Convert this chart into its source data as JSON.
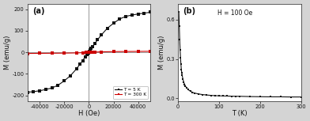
{
  "panel_a": {
    "label": "(a)",
    "xlabel": "H (Oe)",
    "ylabel": "M (emu/g)",
    "xlim": [
      -50000,
      50000
    ],
    "ylim": [
      -225,
      225
    ],
    "xticks": [
      -40000,
      -20000,
      0,
      20000,
      40000
    ],
    "yticks": [
      -200,
      -100,
      0,
      100,
      200
    ],
    "series_5K": {
      "label": "T = 5 K",
      "color": "#111111",
      "H": [
        -50000,
        -45000,
        -40000,
        -35000,
        -30000,
        -25000,
        -20000,
        -15000,
        -10000,
        -7000,
        -5000,
        -3000,
        -1500,
        -800,
        -300,
        0,
        300,
        800,
        1500,
        3000,
        5000,
        7000,
        10000,
        15000,
        20000,
        25000,
        30000,
        35000,
        40000,
        45000,
        50000
      ],
      "M": [
        -185,
        -182,
        -178,
        -172,
        -165,
        -152,
        -132,
        -108,
        -76,
        -53,
        -38,
        -20,
        -10,
        -5,
        -2,
        2,
        5,
        10,
        18,
        25,
        42,
        58,
        80,
        112,
        135,
        155,
        167,
        173,
        178,
        182,
        186
      ]
    },
    "series_300K": {
      "label": "T = 300 K",
      "color": "#cc0000",
      "H": [
        -50000,
        -40000,
        -30000,
        -20000,
        -10000,
        -5000,
        -2000,
        -1000,
        0,
        1000,
        2000,
        5000,
        10000,
        20000,
        30000,
        40000,
        50000
      ],
      "M": [
        -5,
        -4.5,
        -4,
        -3.5,
        -2.5,
        -1.5,
        -0.8,
        -0.4,
        0,
        0.4,
        0.8,
        1.5,
        2.5,
        3.5,
        4,
        4.5,
        5
      ]
    }
  },
  "panel_b": {
    "label": "(b)",
    "annotation": "H = 100 Oe",
    "xlabel": "T (K)",
    "ylabel": "M (emu/g)",
    "xlim": [
      0,
      300
    ],
    "ylim": [
      -0.02,
      0.72
    ],
    "xticks": [
      0,
      100,
      200,
      300
    ],
    "yticks": [
      0.0,
      0.3,
      0.6
    ],
    "color": "#111111",
    "T": [
      2,
      3,
      4,
      5,
      6,
      7,
      8,
      9,
      10,
      12,
      14,
      16,
      18,
      20,
      25,
      30,
      35,
      40,
      50,
      60,
      70,
      80,
      90,
      100,
      110,
      120,
      130,
      140,
      150,
      175,
      200,
      225,
      250,
      275,
      300
    ],
    "M": [
      0.66,
      0.55,
      0.45,
      0.37,
      0.31,
      0.26,
      0.22,
      0.195,
      0.175,
      0.145,
      0.122,
      0.107,
      0.094,
      0.083,
      0.065,
      0.054,
      0.046,
      0.04,
      0.033,
      0.028,
      0.025,
      0.022,
      0.02,
      0.019,
      0.018,
      0.017,
      0.016,
      0.015,
      0.015,
      0.013,
      0.012,
      0.011,
      0.011,
      0.01,
      0.01
    ]
  },
  "figure_bg": "#d4d4d4",
  "axes_bg": "#ffffff",
  "spine_color": "#444444",
  "tick_color": "#111111",
  "label_color": "#111111"
}
